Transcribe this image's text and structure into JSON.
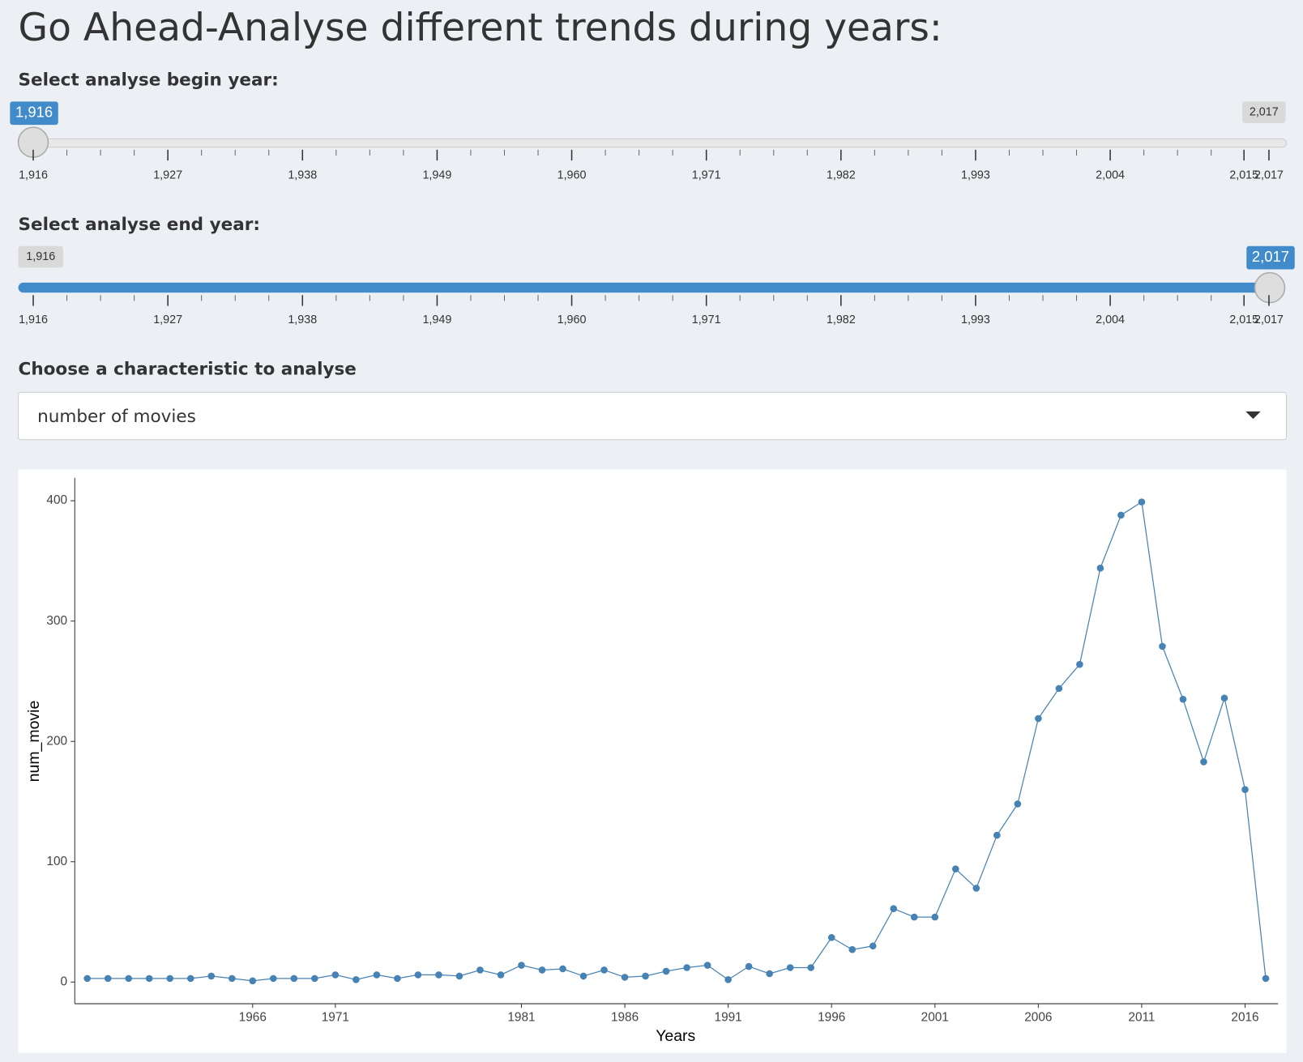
{
  "header": {
    "title": "Go Ahead-Analyse different trends during years:"
  },
  "sliders": [
    {
      "label": "Select analyse begin year:",
      "value": "1,916",
      "min": "1,916",
      "max": "2,017",
      "grid": [
        "1,916",
        "1,927",
        "1,938",
        "1,949",
        "1,960",
        "1,971",
        "1,982",
        "1,993",
        "2,004",
        "2,015",
        "2,017"
      ]
    },
    {
      "label": "Select analyse end year:",
      "value": "2,017",
      "min": "1,916",
      "max": "2,017",
      "grid": [
        "1,916",
        "1,927",
        "1,938",
        "1,949",
        "1,960",
        "1,971",
        "1,982",
        "1,993",
        "2,004",
        "2,015",
        "2,017"
      ]
    }
  ],
  "dropdown": {
    "label": "Choose a characteristic to analyse",
    "selected": "number of movies"
  },
  "chart_data": {
    "type": "line",
    "x_label": "Years",
    "y_label": "num_movie",
    "color": "#4682b4",
    "categories": [
      null,
      null,
      null,
      null,
      null,
      null,
      null,
      null,
      "1966",
      null,
      null,
      null,
      "1971",
      null,
      null,
      null,
      null,
      null,
      null,
      null,
      null,
      "1981",
      null,
      null,
      null,
      null,
      "1986",
      null,
      null,
      null,
      null,
      "1991",
      null,
      null,
      null,
      null,
      "1996",
      null,
      null,
      null,
      null,
      "2001",
      null,
      null,
      null,
      null,
      "2006",
      null,
      null,
      null,
      null,
      "2011",
      null,
      null,
      null,
      null,
      "2016",
      null
    ],
    "values": [
      3,
      3,
      3,
      3,
      3,
      3,
      5,
      3,
      1,
      3,
      3,
      3,
      6,
      2,
      6,
      3,
      6,
      6,
      5,
      10,
      6,
      14,
      10,
      11,
      5,
      10,
      4,
      5,
      9,
      12,
      14,
      2,
      13,
      7,
      12,
      12,
      37,
      27,
      30,
      61,
      54,
      54,
      94,
      78,
      122,
      148,
      219,
      244,
      264,
      344,
      388,
      399,
      279,
      235,
      183,
      236,
      160,
      3
    ],
    "ylim": [
      -18,
      419
    ],
    "yticks": [
      0,
      100,
      200,
      300,
      400
    ]
  }
}
